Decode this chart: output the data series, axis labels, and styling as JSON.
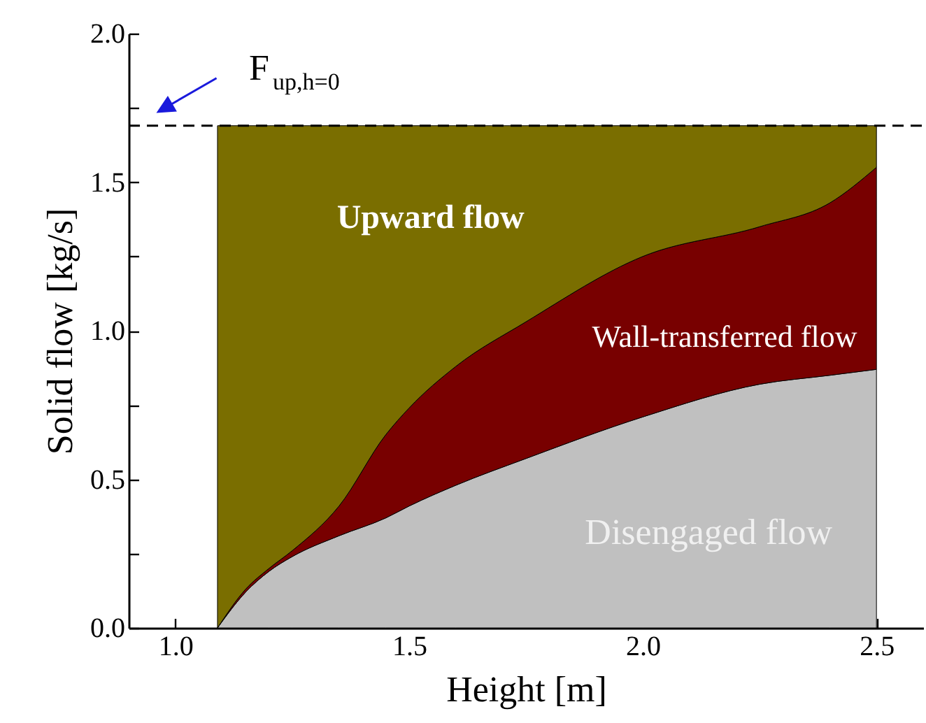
{
  "chart_data": {
    "type": "area",
    "stacked": true,
    "xlabel": "Height [m]",
    "ylabel": "Solid flow [kg/s]",
    "x": [
      1.09,
      1.15,
      1.2,
      1.25,
      1.35,
      1.45,
      1.5,
      1.6,
      1.75,
      2.0,
      2.25,
      2.4,
      2.5
    ],
    "series": [
      {
        "name": "Disengaged flow",
        "color": "#c0c0c0",
        "values": [
          0,
          0.12,
          0.19,
          0.24,
          0.31,
          0.37,
          0.41,
          0.48,
          0.57,
          0.71,
          0.82,
          0.85,
          0.87
        ]
      },
      {
        "name": "Wall-transferred flow",
        "color": "#780000",
        "values": [
          0,
          0.01,
          0.01,
          0.02,
          0.1,
          0.28,
          0.33,
          0.4,
          0.46,
          0.54,
          0.53,
          0.58,
          0.68
        ]
      },
      {
        "name": "Upward flow",
        "color": "#7a6e00",
        "values": [
          1.69,
          1.56,
          1.49,
          1.43,
          1.28,
          1.04,
          0.95,
          0.81,
          0.66,
          0.44,
          0.34,
          0.26,
          0.14
        ]
      }
    ],
    "xlim": [
      0.9,
      2.6
    ],
    "xticks": [
      {
        "value": 1.0,
        "label": "1.0"
      },
      {
        "value": 1.25,
        "label": null
      },
      {
        "value": 1.5,
        "label": "1.5"
      },
      {
        "value": 1.75,
        "label": null
      },
      {
        "value": 2.0,
        "label": "2.0"
      },
      {
        "value": 2.25,
        "label": null
      },
      {
        "value": 2.5,
        "label": "2.5"
      }
    ],
    "ylim": [
      0,
      2
    ],
    "yticks": [
      {
        "value": 0,
        "label": "0.0"
      },
      {
        "value": 0.25,
        "label": null
      },
      {
        "value": 0.5,
        "label": "0.5"
      },
      {
        "value": 0.75,
        "label": null
      },
      {
        "value": 1.0,
        "label": "1.0"
      },
      {
        "value": 1.25,
        "label": null
      },
      {
        "value": 1.5,
        "label": "1.5"
      },
      {
        "value": 1.75,
        "label": null
      },
      {
        "value": 2.0,
        "label": "2.0"
      }
    ],
    "ref_lines": [
      {
        "axis": "y",
        "value": 1.69,
        "color": "#000000",
        "line_style": "dashed"
      }
    ],
    "annotations": [
      {
        "text": "F$_{up,h=0}$",
        "y": 1.69
      }
    ],
    "legend": false,
    "grid": false
  }
}
